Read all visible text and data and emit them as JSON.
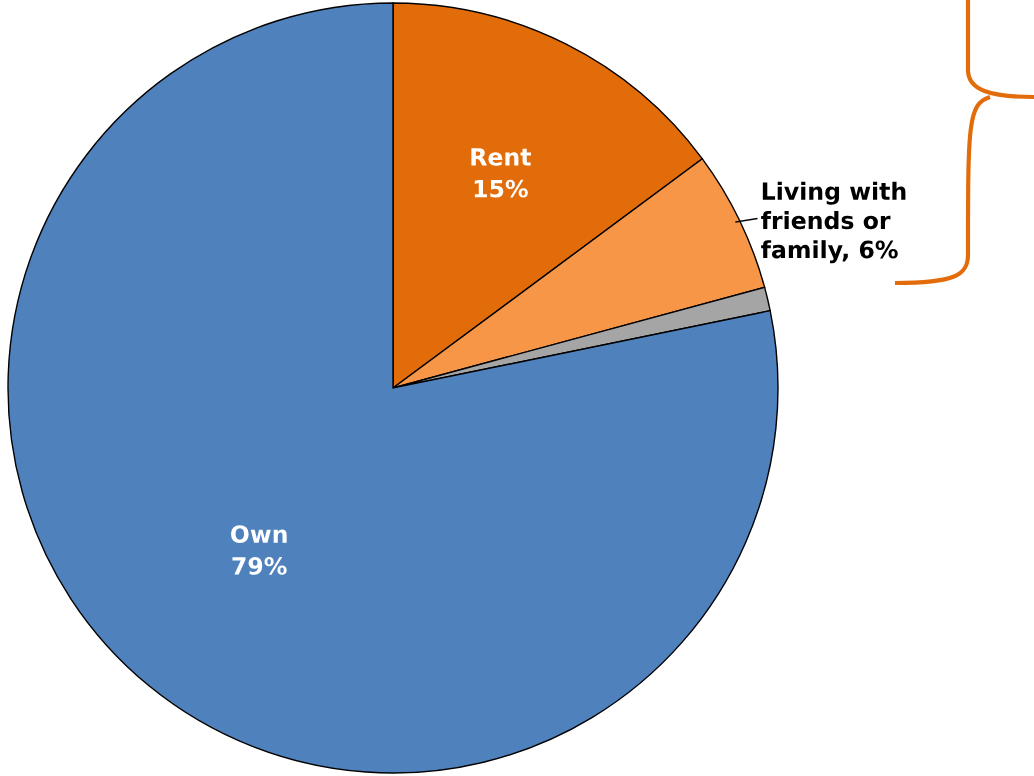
{
  "chart_data": {
    "type": "pie",
    "categories": [
      "Rent",
      "Living with\nfriends or\nfamily",
      null,
      "Own"
    ],
    "values": [
      15,
      6,
      1,
      79
    ],
    "colors": [
      "#e36c0a",
      "#f79646",
      "#a5a5a5",
      "#4f81bd"
    ],
    "value_labels": [
      "15%",
      "6%",
      null,
      "79%"
    ],
    "legend": false
  }
}
